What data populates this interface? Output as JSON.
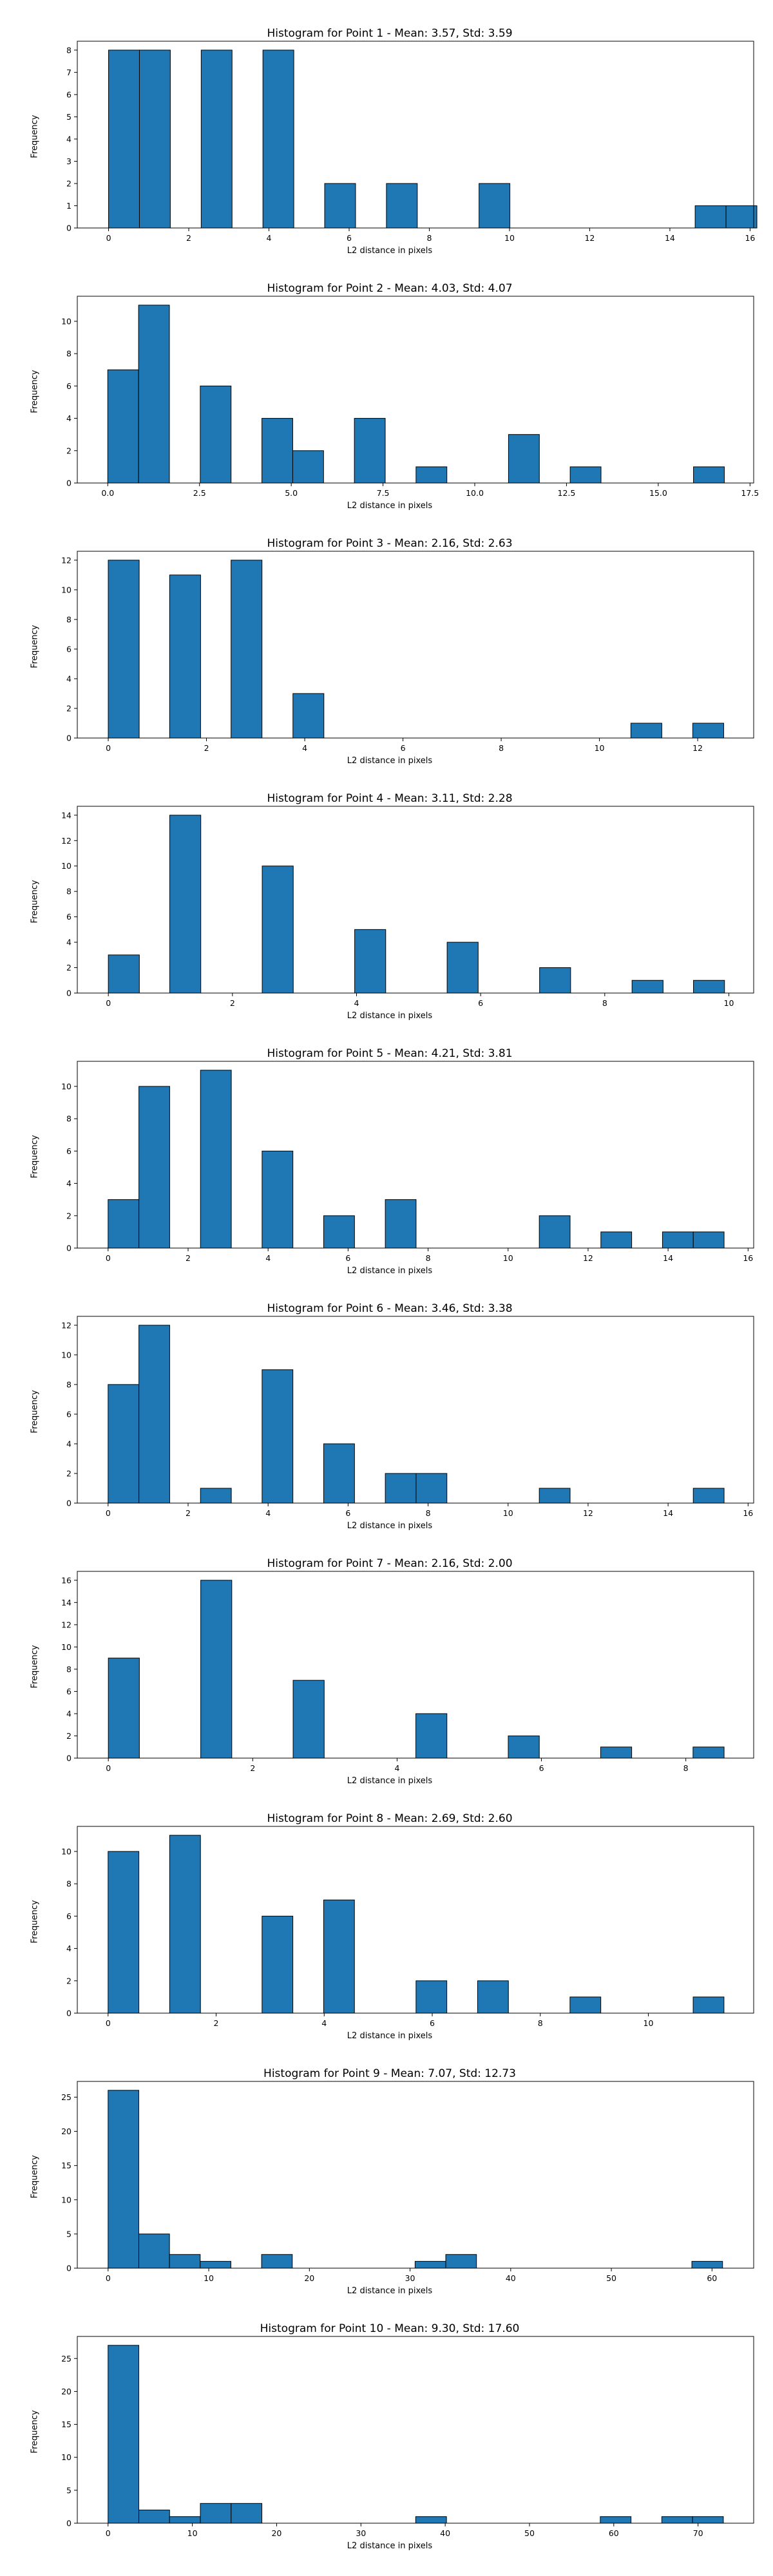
{
  "chart_data": [
    {
      "type": "bar",
      "title": "Histogram for Point 1 - Mean: 3.57, Std: 3.59",
      "xlabel": "L2 distance in pixels",
      "ylabel": "Frequency",
      "xlim": [
        -0.78,
        16.09
      ],
      "ylim": [
        0,
        8.4
      ],
      "xticks": [
        0,
        2,
        4,
        6,
        8,
        10,
        12,
        14,
        16
      ],
      "yticks": [
        0,
        1,
        2,
        3,
        4,
        5,
        6,
        7,
        8
      ],
      "bins": [
        {
          "x0": 0.0,
          "x1": 0.77,
          "count": 8
        },
        {
          "x0": 0.77,
          "x1": 1.54,
          "count": 8
        },
        {
          "x0": 2.31,
          "x1": 3.08,
          "count": 8
        },
        {
          "x0": 3.85,
          "x1": 4.62,
          "count": 8
        },
        {
          "x0": 5.39,
          "x1": 6.16,
          "count": 2
        },
        {
          "x0": 6.93,
          "x1": 7.7,
          "count": 2
        },
        {
          "x0": 9.24,
          "x1": 10.01,
          "count": 2
        },
        {
          "x0": 14.63,
          "x1": 15.4,
          "count": 1
        },
        {
          "x0": 15.4,
          "x1": 16.17,
          "count": 1
        }
      ]
    },
    {
      "type": "bar",
      "title": "Histogram for Point 2 - Mean: 4.03, Std: 4.07",
      "xlabel": "L2 distance in pixels",
      "ylabel": "Frequency",
      "xlim": [
        -0.83,
        17.6
      ],
      "ylim": [
        0,
        11.55
      ],
      "xticks": [
        0.0,
        2.5,
        5.0,
        7.5,
        10.0,
        12.5,
        15.0,
        17.5
      ],
      "xtick_labels": [
        "0.0",
        "2.5",
        "5.0",
        "7.5",
        "10.0",
        "12.5",
        "15.0",
        "17.5"
      ],
      "yticks": [
        0,
        2,
        4,
        6,
        8,
        10
      ],
      "bins": [
        {
          "x0": 0.0,
          "x1": 0.84,
          "count": 7
        },
        {
          "x0": 0.84,
          "x1": 1.68,
          "count": 11
        },
        {
          "x0": 2.52,
          "x1": 3.36,
          "count": 6
        },
        {
          "x0": 4.2,
          "x1": 5.04,
          "count": 4
        },
        {
          "x0": 5.04,
          "x1": 5.88,
          "count": 2
        },
        {
          "x0": 6.72,
          "x1": 7.56,
          "count": 4
        },
        {
          "x0": 8.4,
          "x1": 9.24,
          "count": 1
        },
        {
          "x0": 10.92,
          "x1": 11.76,
          "count": 3
        },
        {
          "x0": 12.6,
          "x1": 13.44,
          "count": 1
        },
        {
          "x0": 15.96,
          "x1": 16.8,
          "count": 1
        }
      ]
    },
    {
      "type": "bar",
      "title": "Histogram for Point 3 - Mean: 2.16, Std: 2.63",
      "xlabel": "L2 distance in pixels",
      "ylabel": "Frequency",
      "xlim": [
        -0.63,
        13.14
      ],
      "ylim": [
        0,
        12.6
      ],
      "xticks": [
        0,
        2,
        4,
        6,
        8,
        10,
        12
      ],
      "yticks": [
        0,
        2,
        4,
        6,
        8,
        10,
        12
      ],
      "bins": [
        {
          "x0": 0.0,
          "x1": 0.63,
          "count": 12
        },
        {
          "x0": 1.25,
          "x1": 1.88,
          "count": 11
        },
        {
          "x0": 2.5,
          "x1": 3.13,
          "count": 12
        },
        {
          "x0": 3.76,
          "x1": 4.39,
          "count": 3
        },
        {
          "x0": 10.64,
          "x1": 11.27,
          "count": 1
        },
        {
          "x0": 11.9,
          "x1": 12.53,
          "count": 1
        }
      ]
    },
    {
      "type": "bar",
      "title": "Histogram for Point 4 - Mean: 3.11, Std: 2.28",
      "xlabel": "L2 distance in pixels",
      "ylabel": "Frequency",
      "xlim": [
        -0.5,
        10.4
      ],
      "ylim": [
        0,
        14.7
      ],
      "xticks": [
        0,
        2,
        4,
        6,
        8,
        10
      ],
      "yticks": [
        0,
        2,
        4,
        6,
        8,
        10,
        12,
        14
      ],
      "bins": [
        {
          "x0": 0.0,
          "x1": 0.5,
          "count": 3
        },
        {
          "x0": 0.99,
          "x1": 1.49,
          "count": 14
        },
        {
          "x0": 2.48,
          "x1": 2.98,
          "count": 10
        },
        {
          "x0": 3.97,
          "x1": 4.47,
          "count": 5
        },
        {
          "x0": 5.46,
          "x1": 5.96,
          "count": 4
        },
        {
          "x0": 6.95,
          "x1": 7.45,
          "count": 2
        },
        {
          "x0": 8.44,
          "x1": 8.94,
          "count": 1
        },
        {
          "x0": 9.43,
          "x1": 9.93,
          "count": 1
        }
      ]
    },
    {
      "type": "bar",
      "title": "Histogram for Point 5 - Mean: 4.21, Std: 3.81",
      "xlabel": "L2 distance in pixels",
      "ylabel": "Frequency",
      "xlim": [
        -0.77,
        16.14
      ],
      "ylim": [
        0,
        11.55
      ],
      "xticks": [
        0,
        2,
        4,
        6,
        8,
        10,
        12,
        14,
        16
      ],
      "yticks": [
        0,
        2,
        4,
        6,
        8,
        10
      ],
      "bins": [
        {
          "x0": 0.0,
          "x1": 0.77,
          "count": 3
        },
        {
          "x0": 0.77,
          "x1": 1.54,
          "count": 10
        },
        {
          "x0": 2.31,
          "x1": 3.08,
          "count": 11
        },
        {
          "x0": 3.85,
          "x1": 4.62,
          "count": 6
        },
        {
          "x0": 5.39,
          "x1": 6.16,
          "count": 2
        },
        {
          "x0": 6.93,
          "x1": 7.7,
          "count": 3
        },
        {
          "x0": 10.78,
          "x1": 11.55,
          "count": 2
        },
        {
          "x0": 12.32,
          "x1": 13.09,
          "count": 1
        },
        {
          "x0": 13.86,
          "x1": 14.63,
          "count": 1
        },
        {
          "x0": 14.63,
          "x1": 15.4,
          "count": 1
        }
      ]
    },
    {
      "type": "bar",
      "title": "Histogram for Point 6 - Mean: 3.46, Std: 3.38",
      "xlabel": "L2 distance in pixels",
      "ylabel": "Frequency",
      "xlim": [
        -0.77,
        16.14
      ],
      "ylim": [
        0,
        12.6
      ],
      "xticks": [
        0,
        2,
        4,
        6,
        8,
        10,
        12,
        14,
        16
      ],
      "yticks": [
        0,
        2,
        4,
        6,
        8,
        10,
        12
      ],
      "bins": [
        {
          "x0": 0.0,
          "x1": 0.77,
          "count": 8
        },
        {
          "x0": 0.77,
          "x1": 1.54,
          "count": 12
        },
        {
          "x0": 2.31,
          "x1": 3.08,
          "count": 1
        },
        {
          "x0": 3.85,
          "x1": 4.62,
          "count": 9
        },
        {
          "x0": 5.39,
          "x1": 6.16,
          "count": 4
        },
        {
          "x0": 6.93,
          "x1": 7.7,
          "count": 2
        },
        {
          "x0": 7.7,
          "x1": 8.47,
          "count": 2
        },
        {
          "x0": 10.78,
          "x1": 11.55,
          "count": 1
        },
        {
          "x0": 14.63,
          "x1": 15.4,
          "count": 1
        }
      ]
    },
    {
      "type": "bar",
      "title": "Histogram for Point 7 - Mean: 2.16, Std: 2.00",
      "xlabel": "L2 distance in pixels",
      "ylabel": "Frequency",
      "xlim": [
        -0.43,
        8.94
      ],
      "ylim": [
        0,
        16.8
      ],
      "xticks": [
        0,
        2,
        4,
        6,
        8
      ],
      "yticks": [
        0,
        2,
        4,
        6,
        8,
        10,
        12,
        14,
        16
      ],
      "bins": [
        {
          "x0": 0.0,
          "x1": 0.43,
          "count": 9
        },
        {
          "x0": 1.28,
          "x1": 1.71,
          "count": 16
        },
        {
          "x0": 2.56,
          "x1": 2.99,
          "count": 7
        },
        {
          "x0": 4.26,
          "x1": 4.69,
          "count": 4
        },
        {
          "x0": 5.54,
          "x1": 5.97,
          "count": 2
        },
        {
          "x0": 6.82,
          "x1": 7.25,
          "count": 1
        },
        {
          "x0": 8.1,
          "x1": 8.53,
          "count": 1
        }
      ]
    },
    {
      "type": "bar",
      "title": "Histogram for Point 8 - Mean: 2.69, Std: 2.60",
      "xlabel": "L2 distance in pixels",
      "ylabel": "Frequency",
      "xlim": [
        -0.57,
        11.95
      ],
      "ylim": [
        0,
        11.55
      ],
      "xticks": [
        0,
        2,
        4,
        6,
        8,
        10
      ],
      "yticks": [
        0,
        2,
        4,
        6,
        8,
        10
      ],
      "bins": [
        {
          "x0": 0.0,
          "x1": 0.57,
          "count": 10
        },
        {
          "x0": 1.14,
          "x1": 1.71,
          "count": 11
        },
        {
          "x0": 2.85,
          "x1": 3.42,
          "count": 6
        },
        {
          "x0": 3.99,
          "x1": 4.56,
          "count": 7
        },
        {
          "x0": 5.7,
          "x1": 6.27,
          "count": 2
        },
        {
          "x0": 6.84,
          "x1": 7.41,
          "count": 2
        },
        {
          "x0": 8.55,
          "x1": 9.12,
          "count": 1
        },
        {
          "x0": 10.83,
          "x1": 11.4,
          "count": 1
        }
      ]
    },
    {
      "type": "bar",
      "title": "Histogram for Point 9 - Mean: 7.07, Std: 12.73",
      "xlabel": "L2 distance in pixels",
      "ylabel": "Frequency",
      "xlim": [
        -3.06,
        64.14
      ],
      "ylim": [
        0,
        27.3
      ],
      "xticks": [
        0,
        10,
        20,
        30,
        40,
        50,
        60
      ],
      "yticks": [
        0,
        5,
        10,
        15,
        20,
        25
      ],
      "bins": [
        {
          "x0": 0.0,
          "x1": 3.05,
          "count": 26
        },
        {
          "x0": 3.05,
          "x1": 6.1,
          "count": 5
        },
        {
          "x0": 6.1,
          "x1": 9.15,
          "count": 2
        },
        {
          "x0": 9.15,
          "x1": 12.2,
          "count": 1
        },
        {
          "x0": 15.25,
          "x1": 18.3,
          "count": 2
        },
        {
          "x0": 30.5,
          "x1": 33.55,
          "count": 1
        },
        {
          "x0": 33.55,
          "x1": 36.6,
          "count": 2
        },
        {
          "x0": 58.0,
          "x1": 61.05,
          "count": 1
        }
      ]
    },
    {
      "type": "bar",
      "title": "Histogram for Point 10 - Mean: 9.30, Std: 17.60",
      "xlabel": "L2 distance in pixels",
      "ylabel": "Frequency",
      "xlim": [
        -3.65,
        76.6
      ],
      "ylim": [
        0,
        28.35
      ],
      "xticks": [
        0,
        10,
        20,
        30,
        40,
        50,
        60,
        70
      ],
      "yticks": [
        0,
        5,
        10,
        15,
        20,
        25
      ],
      "bins": [
        {
          "x0": 0.0,
          "x1": 3.65,
          "count": 27
        },
        {
          "x0": 3.65,
          "x1": 7.3,
          "count": 2
        },
        {
          "x0": 7.3,
          "x1": 10.95,
          "count": 1
        },
        {
          "x0": 10.95,
          "x1": 14.6,
          "count": 3
        },
        {
          "x0": 14.6,
          "x1": 18.25,
          "count": 3
        },
        {
          "x0": 36.5,
          "x1": 40.15,
          "count": 1
        },
        {
          "x0": 58.4,
          "x1": 62.05,
          "count": 1
        },
        {
          "x0": 65.7,
          "x1": 69.35,
          "count": 1
        },
        {
          "x0": 69.35,
          "x1": 73.0,
          "count": 1
        }
      ]
    }
  ],
  "style": {
    "bar_color": "#1f77b4",
    "bar_edge": "#000000",
    "axis_color": "#000000"
  }
}
